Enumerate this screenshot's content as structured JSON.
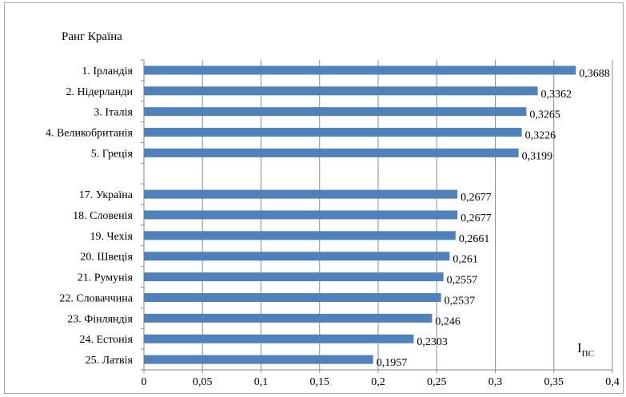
{
  "chart_data": {
    "type": "bar",
    "orientation": "horizontal",
    "title": "Ранг Країна",
    "xlabel": "I",
    "xlabel_sub": "ПС",
    "xlim": [
      0,
      0.4
    ],
    "x_ticks": [
      "0",
      "0,05",
      "0,1",
      "0,15",
      "0,2",
      "0,25",
      "0,3",
      "0,35",
      "0,4"
    ],
    "grid": "vertical",
    "bar_color": "#4f81bd",
    "categories": [
      "1. Ірландія",
      "2. Нідерланди",
      "3. Італія",
      "4. Великобританія",
      "5. Греція",
      "",
      "17. Україна",
      "18. Словенія",
      "19. Чехія",
      "20. Швеція",
      "21. Румунія",
      "22. Словаччина",
      "23. Фінляндія",
      "24. Естонія",
      "25. Латвія"
    ],
    "values": [
      0.3688,
      0.3362,
      0.3265,
      0.3226,
      0.3199,
      null,
      0.2677,
      0.2677,
      0.2661,
      0.261,
      0.2557,
      0.2537,
      0.246,
      0.2303,
      0.1957
    ],
    "value_labels": [
      "0,3688",
      "0,3362",
      "0,3265",
      "0,3226",
      "0,3199",
      "",
      "0,2677",
      "0,2677",
      "0,2661",
      "0,261",
      "0,2557",
      "0,2537",
      "0,246",
      "0,2303",
      "0,1957"
    ]
  }
}
